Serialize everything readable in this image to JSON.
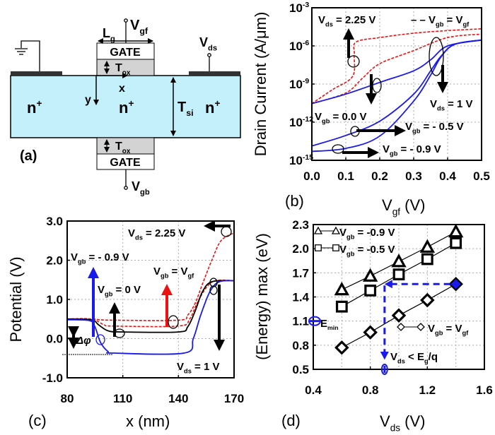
{
  "colors": {
    "silicon": "#c4f0fb",
    "oxide": "#d3d3d3",
    "contact": "#333333",
    "red": "#ee1111",
    "blue": "#1a1aee",
    "black": "#000000"
  },
  "diagram": {
    "panel_label": "(a)",
    "gate_top": "GATE",
    "gate_bottom": "GATE",
    "n_left": [
      [
        "n",
        ""
      ],
      [
        "+",
        "sup"
      ]
    ],
    "n_channel": [
      [
        "n",
        ""
      ],
      [
        "+",
        "sup"
      ]
    ],
    "n_right": [
      [
        "n",
        ""
      ],
      [
        "+",
        "sup"
      ]
    ],
    "vgf": [
      [
        "V",
        ""
      ],
      [
        "gf",
        "sub"
      ]
    ],
    "vgb": [
      [
        "V",
        ""
      ],
      [
        "gb",
        "sub"
      ]
    ],
    "vds": [
      [
        "V",
        ""
      ],
      [
        "ds",
        "sub"
      ]
    ],
    "lg": [
      [
        "L",
        ""
      ],
      [
        "g",
        "sub"
      ]
    ],
    "tox_top": [
      [
        "T",
        ""
      ],
      [
        "ox",
        "sub"
      ]
    ],
    "tox_bottom": [
      [
        "T",
        ""
      ],
      [
        "ox",
        "sub"
      ]
    ],
    "tsi": [
      [
        "T",
        ""
      ],
      [
        "si",
        "sub"
      ]
    ],
    "x_axis": "x",
    "y_axis": "y",
    "icons": [
      "ground-icon",
      "terminal-icon"
    ]
  },
  "chart_data": [
    {
      "panel": "(b)",
      "type": "line",
      "xlabel": [
        [
          "V",
          ""
        ],
        [
          "gf",
          "sub"
        ],
        [
          " (V)",
          ""
        ]
      ],
      "ylabel": "Drain Current (A/μm)",
      "xlim": [
        0,
        0.5
      ],
      "ylim": [
        1e-15,
        0.001
      ],
      "yscale": "log",
      "grid": true,
      "xticks": [
        "0.0",
        "0.1",
        "0.2",
        "0.3",
        "0.4",
        "0.5"
      ],
      "yticks": [
        [
          [
            "10",
            ""
          ],
          [
            "-3",
            "sup"
          ]
        ],
        [
          [
            "10",
            ""
          ],
          [
            "-6",
            "sup"
          ]
        ],
        [
          [
            "10",
            ""
          ],
          [
            "-9",
            "sup"
          ]
        ],
        [
          [
            "10",
            ""
          ],
          [
            "-12",
            "sup"
          ]
        ],
        [
          [
            "10",
            ""
          ],
          [
            "-15",
            "sup"
          ]
        ]
      ],
      "legend": [
        [
          "– – V",
          ""
        ],
        [
          "gb",
          "sub"
        ],
        [
          " = V",
          ""
        ],
        [
          "gf",
          "sub"
        ]
      ],
      "series": [
        {
          "color": "#ee1111",
          "dash": "dashed",
          "x": [
            0,
            0.06,
            0.12,
            0.125,
            0.13,
            0.2,
            0.3,
            0.4,
            0.5
          ],
          "y": [
            2.9e-11,
            3.5e-10,
            4e-09,
            2e-07,
            2e-06,
            4.5e-06,
            1e-05,
            1.6e-05,
            2.2e-05
          ]
        },
        {
          "color": "#ee1111",
          "dash": "dashed",
          "x": [
            0,
            0.1,
            0.15,
            0.2,
            0.3,
            0.4,
            0.5
          ],
          "y": [
            2.9e-11,
            2e-10,
            3e-09,
            4e-08,
            4.3e-07,
            4.5e-06,
            8.5e-06
          ]
        },
        {
          "color": "#1a1aee",
          "dash": "solid",
          "x": [
            0,
            0.1,
            0.2,
            0.3,
            0.35,
            0.4,
            0.5
          ],
          "y": [
            2.9e-11,
            1.6e-10,
            1.35e-09,
            1.1e-08,
            8e-08,
            1e-06,
            2.9e-06
          ]
        },
        {
          "color": "#1a1aee",
          "dash": "solid",
          "x": [
            0,
            0.1,
            0.2,
            0.3,
            0.35,
            0.38,
            0.42,
            0.5
          ],
          "y": [
            1.35e-14,
            9e-14,
            1.2e-12,
            1.6e-10,
            1.1e-08,
            1.5e-07,
            1.3e-06,
            2.9e-06
          ]
        },
        {
          "color": "#1a1aee",
          "dash": "solid",
          "x": [
            0,
            0.1,
            0.2,
            0.3,
            0.35,
            0.38,
            0.42,
            0.5
          ],
          "y": [
            5e-15,
            8.7e-15,
            8e-14,
            4.5e-11,
            5e-09,
            1.3e-07,
            1.3e-06,
            2.9e-06
          ]
        }
      ],
      "annotations": {
        "vds_225": [
          [
            "V",
            ""
          ],
          [
            "ds",
            "sub"
          ],
          [
            " = 2.25 V",
            ""
          ]
        ],
        "vds_1": [
          [
            "V",
            ""
          ],
          [
            "ds",
            "sub"
          ],
          [
            " = 1 V",
            ""
          ]
        ],
        "vgb_0": [
          [
            "V",
            ""
          ],
          [
            "gb",
            "sub"
          ],
          [
            " =  0.0 V",
            ""
          ]
        ],
        "vgb_05": [
          [
            "V",
            ""
          ],
          [
            "gb",
            "sub"
          ],
          [
            " =  - 0.5 V",
            ""
          ]
        ],
        "vgb_09": [
          [
            "V",
            ""
          ],
          [
            "gb",
            "sub"
          ],
          [
            " = - 0.9  V",
            ""
          ]
        ]
      }
    },
    {
      "panel": "(c)",
      "type": "line",
      "xlabel": [
        [
          "x (nm)",
          ""
        ]
      ],
      "ylabel": "Potential (V)",
      "xlim": [
        80,
        170
      ],
      "ylim": [
        -1,
        3
      ],
      "grid": true,
      "xticks": [
        "80",
        "110",
        "140",
        "170"
      ],
      "yticks": [
        "3.0",
        "2.0",
        "1.0",
        "0.0",
        "-1.0"
      ],
      "series": [
        {
          "color": "#ee1111",
          "dash": "dashed",
          "x": [
            80,
            93,
            98,
            105,
            140,
            145,
            149,
            153,
            158,
            163,
            170
          ],
          "y": [
            0.5,
            0.5,
            0.48,
            0.47,
            0.47,
            0.6,
            0.9,
            1.4,
            2.0,
            2.5,
            2.7
          ]
        },
        {
          "color": "#ee1111",
          "dash": "dashed",
          "x": [
            80,
            93,
            100,
            105,
            140,
            146,
            150,
            155,
            160,
            170
          ],
          "y": [
            0.5,
            0.5,
            0.35,
            0.32,
            0.32,
            0.5,
            0.9,
            1.3,
            1.48,
            1.48
          ]
        },
        {
          "color": "#000000",
          "dash": "solid",
          "x": [
            80,
            93,
            97,
            102,
            110,
            140,
            145,
            149,
            153,
            158,
            170
          ],
          "y": [
            0.5,
            0.48,
            0.35,
            0.2,
            0.17,
            0.17,
            0.3,
            0.7,
            1.2,
            1.45,
            1.48
          ]
        },
        {
          "color": "#1a1aee",
          "dash": "solid",
          "x": [
            80,
            92,
            95,
            98,
            102,
            105,
            143,
            148,
            152,
            157,
            162,
            170
          ],
          "y": [
            0.48,
            0.46,
            0.3,
            -0.1,
            -0.33,
            -0.37,
            -0.37,
            0,
            0.6,
            1.2,
            1.45,
            1.48
          ]
        }
      ],
      "annotations": {
        "vds_225": [
          [
            "V",
            ""
          ],
          [
            "ds",
            "sub"
          ],
          [
            " = 2.25 V",
            ""
          ]
        ],
        "vgb_09": [
          [
            "V",
            ""
          ],
          [
            "gb",
            "sub"
          ],
          [
            " = - 0.9 V",
            ""
          ]
        ],
        "vgb_0": [
          [
            "V",
            ""
          ],
          [
            "gb",
            "sub"
          ],
          [
            " = 0 V",
            ""
          ]
        ],
        "vgb_vgf": [
          [
            "V",
            ""
          ],
          [
            "gb",
            "sub"
          ],
          [
            " = V",
            ""
          ],
          [
            "gf",
            "sub"
          ]
        ],
        "vds_1": [
          [
            "V",
            ""
          ],
          [
            "ds",
            "sub"
          ],
          [
            " = 1 V",
            ""
          ]
        ],
        "delta_phi": "Δφ"
      }
    },
    {
      "panel": "(d)",
      "type": "line",
      "xlabel": [
        [
          "V",
          ""
        ],
        [
          "ds",
          "sub"
        ],
        [
          " (V)",
          ""
        ]
      ],
      "ylabel": "(Energy) max (eV)",
      "xlim": [
        0.4,
        1.6
      ],
      "ylim": [
        0.5,
        2.3
      ],
      "grid": true,
      "xticks": [
        "0.4",
        "0.8",
        "1.2",
        "1.6"
      ],
      "yticks": [
        "2.3",
        "2.0",
        "1.7",
        "1.4",
        "1.1",
        "0.8",
        "0.5"
      ],
      "series": [
        {
          "name": [
            [
              "V",
              ""
            ],
            [
              "gb",
              "sub"
            ],
            [
              " = -0.9 V",
              ""
            ]
          ],
          "marker": "triangle",
          "x": [
            0.6,
            0.8,
            1.0,
            1.2,
            1.4
          ],
          "y": [
            1.49,
            1.66,
            1.84,
            2.02,
            2.21
          ]
        },
        {
          "name": [
            [
              "V",
              ""
            ],
            [
              "gb",
              "sub"
            ],
            [
              " = -0.5 V",
              ""
            ]
          ],
          "marker": "square",
          "x": [
            0.6,
            0.8,
            1.0,
            1.2,
            1.4
          ],
          "y": [
            1.28,
            1.48,
            1.68,
            1.87,
            2.07
          ]
        },
        {
          "name": [
            [
              "V",
              ""
            ],
            [
              "gb",
              "sub"
            ],
            [
              " = V",
              ""
            ],
            [
              "gf",
              "sub"
            ]
          ],
          "marker": "diamond",
          "x": [
            0.6,
            0.8,
            1.0,
            1.2,
            1.4
          ],
          "y": [
            0.77,
            0.96,
            1.17,
            1.36,
            1.56
          ]
        }
      ],
      "annotations": {
        "emin": [
          [
            "E",
            ""
          ],
          [
            "min",
            "sub"
          ]
        ],
        "vds_eg": [
          [
            "V",
            ""
          ],
          [
            "ds",
            "sub"
          ],
          [
            " < E",
            ""
          ],
          [
            "g",
            "sub"
          ],
          [
            "/q",
            ""
          ]
        ],
        "emin_value": 1.1,
        "vds_threshold": 0.9,
        "energy_at_1_4": 1.56
      }
    }
  ]
}
